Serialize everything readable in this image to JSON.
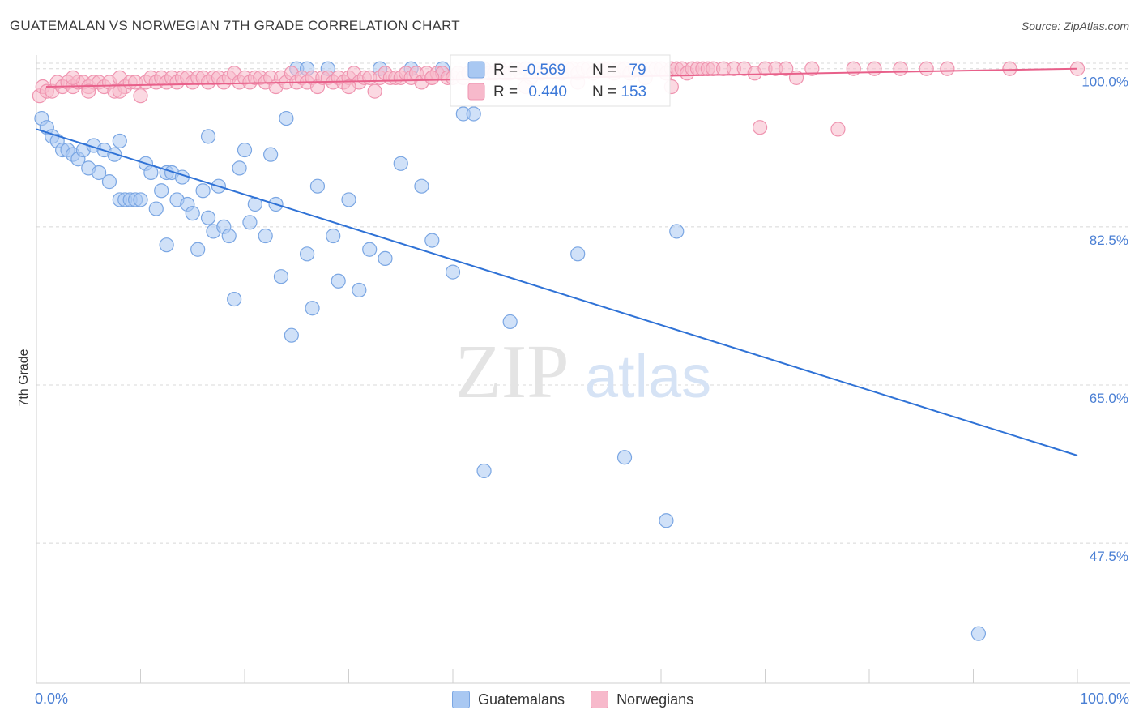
{
  "title": "GUATEMALAN VS NORWEGIAN 7TH GRADE CORRELATION CHART",
  "source": "Source: ZipAtlas.com",
  "watermark": {
    "zip": "ZIP",
    "atlas": "atlas"
  },
  "colors": {
    "blue_fill": "#a9c8f2",
    "blue_stroke": "#7aa6e3",
    "blue_line": "#2f72d6",
    "pink_fill": "#f7b9cb",
    "pink_stroke": "#ef94b0",
    "pink_line": "#e8608a",
    "axis_label": "#4a7fd4",
    "grid": "#d8d8d8"
  },
  "stats_box": {
    "rows": [
      {
        "r_label": "R = ",
        "r_value": "-0.569",
        "n_label": "N = ",
        "n_value": "79"
      },
      {
        "r_label": "R = ",
        "r_value": "0.440",
        "n_label": "N = ",
        "n_value": "153"
      }
    ]
  },
  "x_axis": {
    "left_label": "0.0%",
    "right_label": "100.0%"
  },
  "legend": [
    {
      "name": "Guatemalans"
    },
    {
      "name": "Norwegians"
    }
  ],
  "chart_data": {
    "type": "scatter",
    "title": "GUATEMALAN VS NORWEGIAN 7TH GRADE CORRELATION CHART",
    "xlabel": "",
    "ylabel": "7th Grade",
    "xlim": [
      0,
      100
    ],
    "ylim": [
      32,
      101.5
    ],
    "y_ticks": [
      47.5,
      65.0,
      82.5,
      100.0
    ],
    "y_tick_labels": [
      "47.5%",
      "65.0%",
      "82.5%",
      "100.0%"
    ],
    "series": [
      {
        "name": "Guatemalans",
        "trend": {
          "x": [
            0,
            100
          ],
          "y": [
            93.3,
            57.2
          ]
        },
        "points": [
          [
            0.5,
            94.5
          ],
          [
            1.0,
            93.5
          ],
          [
            1.5,
            92.5
          ],
          [
            2.0,
            92.0
          ],
          [
            2.5,
            91.0
          ],
          [
            3.0,
            91.0
          ],
          [
            3.5,
            90.5
          ],
          [
            4.0,
            90.0
          ],
          [
            4.5,
            91.0
          ],
          [
            5.0,
            89.0
          ],
          [
            5.5,
            91.5
          ],
          [
            6.0,
            88.5
          ],
          [
            6.5,
            91.0
          ],
          [
            7.0,
            87.5
          ],
          [
            7.5,
            90.5
          ],
          [
            8.0,
            92.0
          ],
          [
            8.0,
            85.5
          ],
          [
            8.5,
            85.5
          ],
          [
            9.0,
            85.5
          ],
          [
            9.5,
            85.5
          ],
          [
            10.0,
            85.5
          ],
          [
            10.5,
            89.5
          ],
          [
            11.0,
            88.5
          ],
          [
            11.5,
            84.5
          ],
          [
            12.0,
            86.5
          ],
          [
            12.5,
            88.5
          ],
          [
            13.0,
            88.5
          ],
          [
            13.5,
            85.5
          ],
          [
            14.0,
            88.0
          ],
          [
            14.5,
            85.0
          ],
          [
            15.0,
            84.0
          ],
          [
            15.5,
            80.0
          ],
          [
            16.0,
            86.5
          ],
          [
            16.5,
            83.5
          ],
          [
            17.0,
            82.0
          ],
          [
            17.5,
            87.0
          ],
          [
            18.0,
            82.5
          ],
          [
            18.5,
            81.5
          ],
          [
            19.0,
            74.5
          ],
          [
            19.5,
            89.0
          ],
          [
            20.0,
            91.0
          ],
          [
            20.5,
            83.0
          ],
          [
            21.0,
            85.0
          ],
          [
            22.0,
            81.5
          ],
          [
            22.5,
            90.5
          ],
          [
            23.0,
            85.0
          ],
          [
            23.5,
            77.0
          ],
          [
            24.0,
            94.5
          ],
          [
            24.5,
            70.5
          ],
          [
            25.0,
            100.0
          ],
          [
            26.0,
            79.5
          ],
          [
            26.5,
            73.5
          ],
          [
            27.0,
            87.0
          ],
          [
            28.0,
            100.0
          ],
          [
            26.0,
            100.0
          ],
          [
            28.5,
            81.5
          ],
          [
            29.0,
            76.5
          ],
          [
            30.0,
            85.5
          ],
          [
            31.0,
            75.5
          ],
          [
            32.0,
            80.0
          ],
          [
            33.0,
            100.0
          ],
          [
            33.5,
            79.0
          ],
          [
            35.0,
            89.5
          ],
          [
            36.0,
            100.0
          ],
          [
            37.0,
            87.0
          ],
          [
            38.0,
            81.0
          ],
          [
            39.0,
            100.0
          ],
          [
            40.0,
            77.5
          ],
          [
            41.0,
            95.0
          ],
          [
            42.0,
            95.0
          ],
          [
            16.5,
            92.5
          ],
          [
            43.0,
            55.5
          ],
          [
            45.5,
            72.0
          ],
          [
            52.0,
            79.5
          ],
          [
            56.5,
            57.0
          ],
          [
            60.5,
            50.0
          ],
          [
            61.5,
            82.0
          ],
          [
            90.5,
            37.5
          ],
          [
            12.5,
            80.5
          ]
        ]
      },
      {
        "name": "Norwegians",
        "trend": {
          "x": [
            0,
            100
          ],
          "y": [
            98.0,
            100.0
          ]
        },
        "points": [
          [
            0.3,
            97.0
          ],
          [
            0.6,
            98.0
          ],
          [
            1.0,
            97.5
          ],
          [
            1.5,
            97.5
          ],
          [
            2.0,
            98.5
          ],
          [
            2.5,
            98.0
          ],
          [
            3.0,
            98.5
          ],
          [
            3.5,
            98.0
          ],
          [
            4.0,
            98.5
          ],
          [
            4.5,
            98.5
          ],
          [
            5.0,
            98.0
          ],
          [
            5.5,
            98.5
          ],
          [
            6.0,
            98.5
          ],
          [
            6.5,
            98.0
          ],
          [
            7.0,
            98.5
          ],
          [
            7.5,
            97.5
          ],
          [
            8.0,
            99.0
          ],
          [
            8.5,
            98.0
          ],
          [
            9.0,
            98.5
          ],
          [
            9.5,
            98.5
          ],
          [
            10.0,
            97.0
          ],
          [
            10.5,
            98.5
          ],
          [
            11.0,
            99.0
          ],
          [
            11.5,
            98.5
          ],
          [
            12.0,
            99.0
          ],
          [
            12.5,
            98.5
          ],
          [
            13.0,
            99.0
          ],
          [
            13.5,
            98.5
          ],
          [
            14.0,
            99.0
          ],
          [
            14.5,
            99.0
          ],
          [
            15.0,
            98.5
          ],
          [
            15.5,
            99.0
          ],
          [
            16.0,
            99.0
          ],
          [
            16.5,
            98.5
          ],
          [
            17.0,
            99.0
          ],
          [
            17.5,
            99.0
          ],
          [
            18.0,
            98.5
          ],
          [
            18.5,
            99.0
          ],
          [
            19.0,
            99.5
          ],
          [
            19.5,
            98.5
          ],
          [
            20.0,
            99.0
          ],
          [
            20.5,
            98.5
          ],
          [
            21.0,
            99.0
          ],
          [
            21.5,
            99.0
          ],
          [
            22.0,
            98.5
          ],
          [
            22.5,
            99.0
          ],
          [
            23.0,
            98.0
          ],
          [
            23.5,
            99.0
          ],
          [
            24.0,
            98.5
          ],
          [
            24.5,
            99.5
          ],
          [
            25.0,
            98.5
          ],
          [
            25.5,
            99.0
          ],
          [
            26.0,
            98.5
          ],
          [
            26.5,
            99.0
          ],
          [
            27.0,
            98.0
          ],
          [
            27.5,
            99.0
          ],
          [
            28.0,
            99.0
          ],
          [
            28.5,
            98.5
          ],
          [
            29.0,
            99.0
          ],
          [
            29.5,
            98.5
          ],
          [
            30.0,
            99.0
          ],
          [
            30.5,
            99.5
          ],
          [
            31.0,
            98.5
          ],
          [
            31.5,
            99.0
          ],
          [
            32.0,
            99.0
          ],
          [
            32.5,
            97.5
          ],
          [
            33.0,
            99.0
          ],
          [
            33.5,
            99.5
          ],
          [
            34.0,
            99.0
          ],
          [
            34.5,
            99.0
          ],
          [
            35.0,
            99.0
          ],
          [
            35.5,
            99.5
          ],
          [
            36.0,
            99.0
          ],
          [
            36.5,
            99.5
          ],
          [
            37.0,
            98.5
          ],
          [
            37.5,
            99.5
          ],
          [
            38.0,
            99.0
          ],
          [
            38.5,
            99.5
          ],
          [
            39.0,
            99.5
          ],
          [
            39.5,
            99.0
          ],
          [
            40.0,
            99.0
          ],
          [
            40.5,
            99.5
          ],
          [
            41.0,
            99.0
          ],
          [
            41.5,
            99.5
          ],
          [
            42.0,
            99.5
          ],
          [
            42.5,
            99.5
          ],
          [
            43.0,
            100.0
          ],
          [
            43.5,
            99.5
          ],
          [
            44.0,
            99.5
          ],
          [
            44.5,
            100.0
          ],
          [
            45.0,
            99.5
          ],
          [
            45.5,
            99.5
          ],
          [
            46.0,
            100.0
          ],
          [
            46.5,
            99.5
          ],
          [
            47.0,
            100.0
          ],
          [
            47.5,
            99.0
          ],
          [
            48.0,
            100.0
          ],
          [
            48.5,
            99.5
          ],
          [
            49.0,
            100.0
          ],
          [
            49.5,
            100.0
          ],
          [
            50.0,
            100.0
          ],
          [
            50.5,
            99.5
          ],
          [
            51.0,
            100.0
          ],
          [
            51.5,
            100.0
          ],
          [
            52.0,
            99.5
          ],
          [
            52.5,
            100.0
          ],
          [
            53.0,
            100.0
          ],
          [
            53.5,
            99.5
          ],
          [
            54.0,
            100.0
          ],
          [
            54.5,
            100.0
          ],
          [
            55.0,
            100.0
          ],
          [
            55.5,
            99.5
          ],
          [
            56.0,
            100.0
          ],
          [
            56.5,
            100.0
          ],
          [
            57.0,
            99.5
          ],
          [
            57.5,
            100.0
          ],
          [
            58.0,
            100.0
          ],
          [
            58.5,
            99.0
          ],
          [
            59.0,
            100.0
          ],
          [
            59.5,
            100.0
          ],
          [
            60.0,
            100.0
          ],
          [
            60.5,
            99.5
          ],
          [
            61.0,
            100.0
          ],
          [
            61.5,
            100.0
          ],
          [
            62.0,
            100.0
          ],
          [
            62.5,
            99.5
          ],
          [
            63.0,
            100.0
          ],
          [
            63.5,
            100.0
          ],
          [
            64.0,
            100.0
          ],
          [
            64.5,
            100.0
          ],
          [
            65.0,
            100.0
          ],
          [
            66.0,
            100.0
          ],
          [
            67.0,
            100.0
          ],
          [
            68.0,
            100.0
          ],
          [
            69.0,
            99.5
          ],
          [
            70.0,
            100.0
          ],
          [
            71.0,
            100.0
          ],
          [
            72.0,
            100.0
          ],
          [
            73.0,
            99.0
          ],
          [
            74.5,
            100.0
          ],
          [
            78.5,
            100.0
          ],
          [
            80.5,
            100.0
          ],
          [
            83.0,
            100.0
          ],
          [
            85.5,
            100.0
          ],
          [
            87.5,
            100.0
          ],
          [
            93.5,
            100.0
          ],
          [
            100.0,
            100.0
          ],
          [
            69.5,
            93.5
          ],
          [
            77.0,
            93.3
          ],
          [
            61.0,
            98.0
          ],
          [
            52.0,
            98.5
          ],
          [
            47.0,
            98.0
          ],
          [
            38.0,
            99.0
          ],
          [
            30.0,
            98.0
          ],
          [
            5.0,
            97.5
          ],
          [
            8.0,
            97.5
          ],
          [
            3.5,
            99.0
          ]
        ]
      }
    ]
  }
}
